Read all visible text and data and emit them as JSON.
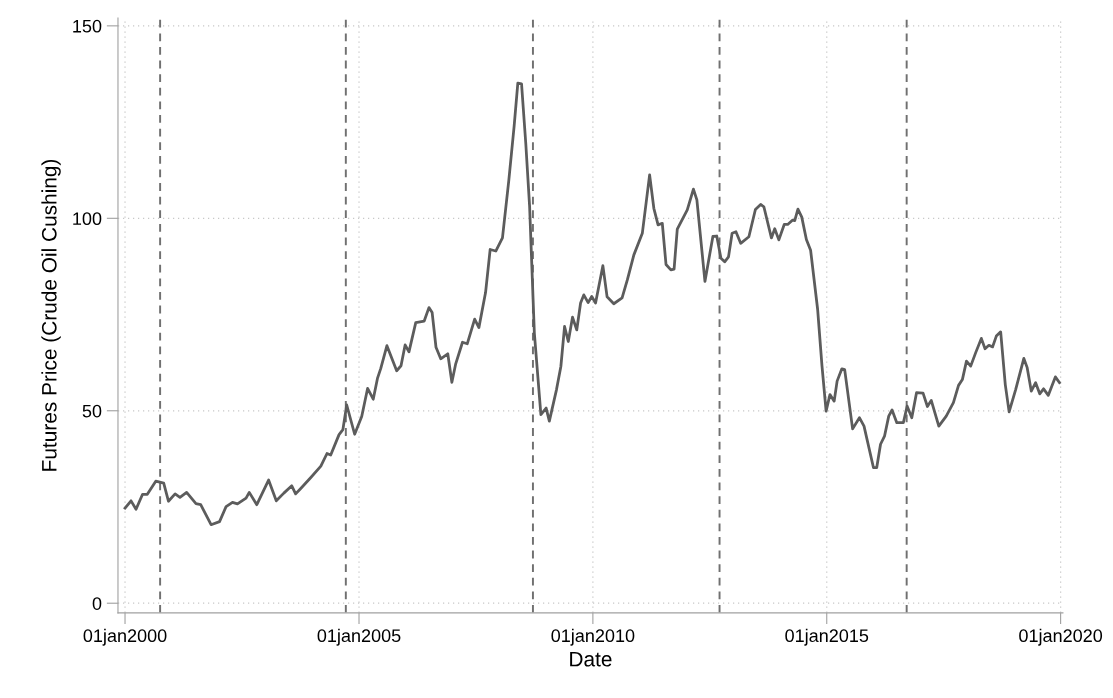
{
  "chart_data": {
    "type": "line",
    "xlabel": "Date",
    "ylabel": "Futures Price (Crude Oil Cushing)",
    "xlim": [
      "1999-11-07",
      "2020-01-19"
    ],
    "ylim": [
      -2.5,
      152
    ],
    "xticks": [
      {
        "value": "2000-01-01",
        "label": "01jan2000"
      },
      {
        "value": "2005-01-01",
        "label": "01jan2005"
      },
      {
        "value": "2010-01-01",
        "label": "01jan2010"
      },
      {
        "value": "2015-01-01",
        "label": "01jan2015"
      },
      {
        "value": "2020-01-01",
        "label": "01jan2020"
      }
    ],
    "yticks": [
      0,
      50,
      100,
      150
    ],
    "grid": true,
    "marker": "none",
    "line_style": "solid",
    "ref_lines": [
      {
        "axis": "x",
        "value": "2000-10-01",
        "color": "#707070",
        "line_style": "dashed"
      },
      {
        "axis": "x",
        "value": "2004-09-20",
        "color": "#707070",
        "line_style": "dashed"
      },
      {
        "axis": "x",
        "value": "2008-09-20",
        "color": "#707070",
        "line_style": "dashed"
      },
      {
        "axis": "x",
        "value": "2012-09-16",
        "color": "#707070",
        "line_style": "dashed"
      },
      {
        "axis": "x",
        "value": "2016-09-16",
        "color": "#707070",
        "line_style": "dashed"
      }
    ],
    "series": [
      {
        "color": "#5c5c5c",
        "x": [
          "2000-01-01",
          "2000-02-17",
          "2000-03-27",
          "2000-05-17",
          "2000-06-23",
          "2000-08-28",
          "2000-10-29",
          "2000-12-05",
          "2001-01-26",
          "2001-03-05",
          "2001-04-26",
          "2001-07-08",
          "2001-08-14",
          "2001-11-03",
          "2002-01-08",
          "2002-02-28",
          "2002-04-19",
          "2002-05-28",
          "2002-08-03",
          "2002-08-28",
          "2002-10-26",
          "2003-01-26",
          "2003-03-27",
          "2003-05-25",
          "2003-07-26",
          "2003-08-25",
          "2003-10-04",
          "2003-12-20",
          "2004-03-09",
          "2004-04-26",
          "2004-05-25",
          "2004-07-29",
          "2004-08-28",
          "2004-09-27",
          "2004-11-28",
          "2005-01-22",
          "2005-03-09",
          "2005-04-22",
          "2005-05-25",
          "2005-06-20",
          "2005-08-07",
          "2005-10-22",
          "2005-11-25",
          "2005-12-27",
          "2006-01-26",
          "2006-03-20",
          "2006-05-25",
          "2006-07-01",
          "2006-07-26",
          "2006-08-25",
          "2006-10-01",
          "2006-11-25",
          "2006-12-27",
          "2007-01-26",
          "2007-03-20",
          "2007-04-26",
          "2007-06-23",
          "2007-07-26",
          "2007-09-16",
          "2007-10-22",
          "2007-12-05",
          "2008-01-26",
          "2008-03-16",
          "2008-04-26",
          "2008-05-25",
          "2008-06-23",
          "2008-07-26",
          "2008-08-25",
          "2008-10-01",
          "2008-11-21",
          "2009-01-01",
          "2009-01-26",
          "2009-03-23",
          "2009-04-26",
          "2009-05-25",
          "2009-06-23",
          "2009-07-26",
          "2009-08-28",
          "2009-09-27",
          "2009-10-22",
          "2009-11-25",
          "2009-12-23",
          "2010-01-22",
          "2010-03-20",
          "2010-04-22",
          "2010-06-13",
          "2010-08-17",
          "2010-09-27",
          "2010-11-17",
          "2011-01-22",
          "2011-03-20",
          "2011-04-22",
          "2011-05-25",
          "2011-06-27",
          "2011-07-26",
          "2011-09-02",
          "2011-09-27",
          "2011-10-22",
          "2012-01-08",
          "2012-02-25",
          "2012-03-23",
          "2012-05-25",
          "2012-07-26",
          "2012-08-25",
          "2012-09-27",
          "2012-10-26",
          "2012-11-25",
          "2012-12-23",
          "2013-01-22",
          "2013-02-28",
          "2013-05-03",
          "2013-06-23",
          "2013-08-03",
          "2013-08-28",
          "2013-10-26",
          "2013-11-21",
          "2013-12-23",
          "2014-02-03",
          "2014-03-02",
          "2014-04-08",
          "2014-04-26",
          "2014-05-21",
          "2014-06-20",
          "2014-07-26",
          "2014-08-28",
          "2014-10-22",
          "2014-11-25",
          "2014-12-27",
          "2015-01-26",
          "2015-02-28",
          "2015-03-23",
          "2015-04-29",
          "2015-05-21",
          "2015-07-22",
          "2015-09-13",
          "2015-10-19",
          "2016-01-01",
          "2016-01-26",
          "2016-02-25",
          "2016-03-27",
          "2016-04-29",
          "2016-05-25",
          "2016-07-01",
          "2016-08-21",
          "2016-09-20",
          "2016-10-26",
          "2016-12-02",
          "2017-01-22",
          "2017-02-25",
          "2017-03-27",
          "2017-05-25",
          "2017-07-22",
          "2017-09-16",
          "2017-10-26",
          "2017-11-25",
          "2017-12-27",
          "2018-01-29",
          "2018-03-09",
          "2018-04-22",
          "2018-05-21",
          "2018-06-20",
          "2018-07-19",
          "2018-08-17",
          "2018-09-20",
          "2018-10-26",
          "2018-11-25",
          "2019-01-15",
          "2019-03-20",
          "2019-04-15",
          "2019-05-17",
          "2019-06-20",
          "2019-07-22",
          "2019-08-21",
          "2019-09-27",
          "2019-11-21",
          "2019-12-23"
        ],
        "values": [
          24.7,
          26.6,
          24.4,
          28.3,
          28.3,
          31.7,
          31.2,
          26.5,
          28.4,
          27.5,
          28.8,
          25.9,
          25.6,
          20.4,
          21.2,
          25.1,
          26.2,
          25.8,
          27.3,
          28.8,
          25.6,
          32.0,
          26.6,
          28.6,
          30.5,
          28.4,
          29.8,
          32.6,
          35.6,
          38.9,
          38.5,
          43.8,
          45.1,
          51.5,
          43.9,
          48.5,
          55.8,
          53.0,
          58.4,
          61.0,
          66.9,
          60.4,
          61.7,
          67.1,
          65.3,
          72.9,
          73.3,
          76.8,
          75.5,
          66.5,
          63.5,
          64.8,
          57.4,
          62.2,
          67.8,
          67.4,
          73.8,
          71.6,
          80.7,
          91.9,
          91.5,
          94.9,
          110.0,
          123.9,
          135.1,
          134.9,
          119.5,
          103.1,
          70.2,
          49.0,
          50.7,
          47.3,
          55.5,
          61.5,
          71.9,
          68.0,
          74.3,
          71.0,
          78.0,
          80.1,
          78.1,
          79.7,
          78.0,
          87.7,
          79.6,
          77.8,
          79.3,
          84.0,
          90.5,
          96.1,
          111.3,
          102.6,
          98.3,
          98.7,
          88.0,
          86.6,
          86.8,
          97.2,
          102.2,
          107.6,
          104.8,
          83.6,
          95.3,
          95.4,
          89.6,
          88.7,
          90.0,
          96.1,
          96.5,
          93.5,
          95.2,
          102.3,
          103.6,
          103.0,
          94.9,
          97.3,
          94.4,
          98.4,
          98.4,
          99.5,
          99.4,
          102.4,
          100.3,
          94.5,
          91.7,
          76.3,
          61.6,
          49.9,
          54.2,
          52.5,
          57.7,
          60.9,
          60.7,
          45.3,
          48.2,
          46.0,
          35.2,
          35.2,
          41.3,
          43.4,
          48.6,
          50.2,
          46.9,
          46.9,
          51.2,
          48.2,
          54.7,
          54.6,
          51.1,
          52.7,
          46.0,
          48.6,
          52.1,
          56.6,
          58.1,
          62.9,
          61.6,
          65.1,
          68.8,
          66.1,
          67.0,
          66.6,
          69.4,
          70.5,
          56.8,
          49.7,
          55.5,
          63.6,
          61.2,
          55.1,
          57.3,
          54.4,
          55.7,
          54.0,
          58.8,
          57.3
        ]
      }
    ]
  }
}
